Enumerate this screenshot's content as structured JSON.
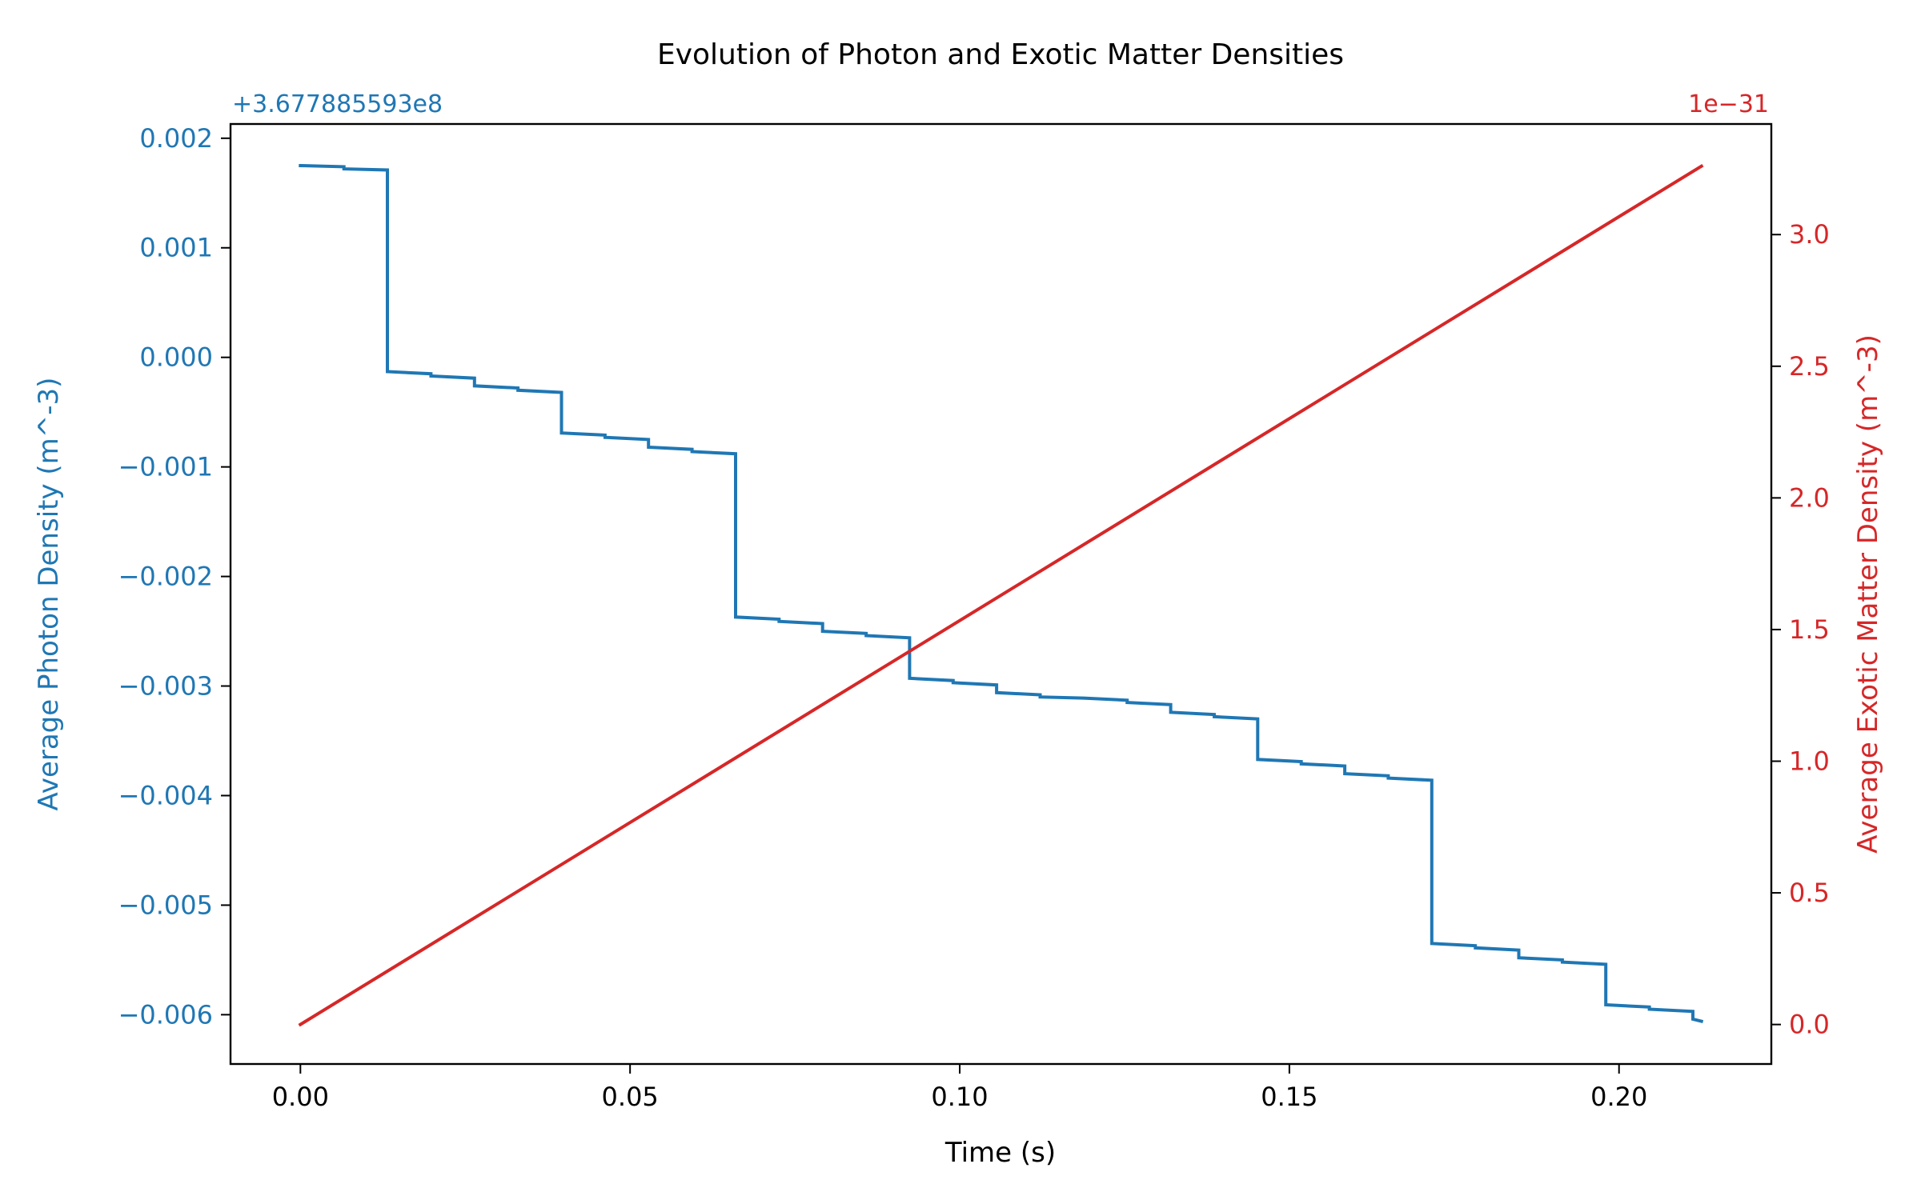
{
  "chart_data": {
    "type": "line",
    "title": "Evolution of Photon and Exotic Matter Densities",
    "xlabel": "Time (s)",
    "xlim": [
      -0.0106,
      0.2231
    ],
    "xticks": [
      0.0,
      0.05,
      0.1,
      0.15,
      0.2
    ],
    "xtick_labels": [
      "0.00",
      "0.05",
      "0.10",
      "0.15",
      "0.20"
    ],
    "grid": false,
    "left_axis": {
      "label": "Average Photon Density (m^-3)",
      "offset_text": "+3.677885593e8",
      "color": "#1f77b4",
      "ylim": [
        -0.00645,
        0.00213
      ],
      "ticks": [
        0.002,
        0.001,
        0.0,
        -0.001,
        -0.002,
        -0.003,
        -0.004,
        -0.005,
        -0.006
      ],
      "tick_labels": [
        "0.002",
        "0.001",
        "0.000",
        "−0.001",
        "−0.002",
        "−0.003",
        "−0.004",
        "−0.005",
        "−0.006"
      ]
    },
    "right_axis": {
      "label": "Average Exotic Matter Density (m^-3)",
      "offset_text": "1e−31",
      "color": "#d62728",
      "ylim": [
        -0.15,
        3.42
      ],
      "ticks": [
        0.0,
        0.5,
        1.0,
        1.5,
        2.0,
        2.5,
        3.0
      ],
      "tick_labels": [
        "0.0",
        "0.5",
        "1.0",
        "1.5",
        "2.0",
        "2.5",
        "3.0"
      ]
    },
    "series": [
      {
        "axis": "left",
        "color": "#1f77b4",
        "x": [
          0.0,
          0.0066,
          0.0066,
          0.0132,
          0.0132,
          0.0198,
          0.0198,
          0.0264,
          0.0264,
          0.033,
          0.033,
          0.0396,
          0.0396,
          0.0462,
          0.0462,
          0.0528,
          0.0528,
          0.0594,
          0.0594,
          0.066,
          0.066,
          0.0726,
          0.0726,
          0.0792,
          0.0792,
          0.0858,
          0.0858,
          0.0924,
          0.0924,
          0.099,
          0.099,
          0.1056,
          0.1056,
          0.1122,
          0.1122,
          0.1188,
          0.1188,
          0.1254,
          0.1254,
          0.132,
          0.132,
          0.1386,
          0.1386,
          0.1452,
          0.1452,
          0.1518,
          0.1518,
          0.1584,
          0.1584,
          0.165,
          0.165,
          0.1716,
          0.1716,
          0.1782,
          0.1782,
          0.1848,
          0.1848,
          0.1914,
          0.1914,
          0.198,
          0.198,
          0.2046,
          0.2046,
          0.2112,
          0.2112,
          0.2125
        ],
        "y": [
          0.00175,
          0.00174,
          0.00172,
          0.00171,
          -0.00013,
          -0.00015,
          -0.00017,
          -0.00019,
          -0.00026,
          -0.00028,
          -0.0003,
          -0.00032,
          -0.00069,
          -0.00071,
          -0.00073,
          -0.00075,
          -0.00082,
          -0.00084,
          -0.00086,
          -0.00088,
          -0.00237,
          -0.00239,
          -0.00241,
          -0.00243,
          -0.0025,
          -0.00252,
          -0.00254,
          -0.00256,
          -0.00293,
          -0.00295,
          -0.00297,
          -0.00299,
          -0.00306,
          -0.00308,
          -0.0031,
          -0.00311,
          -0.00311,
          -0.00313,
          -0.00315,
          -0.00317,
          -0.00324,
          -0.00326,
          -0.00328,
          -0.0033,
          -0.00367,
          -0.00369,
          -0.00371,
          -0.00373,
          -0.0038,
          -0.00382,
          -0.00384,
          -0.00386,
          -0.00535,
          -0.00537,
          -0.00539,
          -0.00541,
          -0.00548,
          -0.0055,
          -0.00552,
          -0.00554,
          -0.00591,
          -0.00593,
          -0.00595,
          -0.00597,
          -0.00604,
          -0.00606
        ]
      },
      {
        "axis": "right",
        "color": "#d62728",
        "x": [
          0.0,
          0.2125
        ],
        "y": [
          0.0,
          3.26
        ]
      }
    ]
  }
}
